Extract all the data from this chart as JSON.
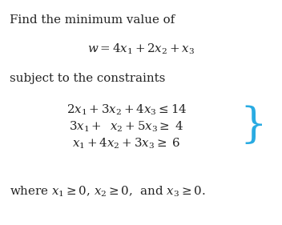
{
  "line1": "Find the minimum value of",
  "line2": "$w = 4x_1 + 2x_2 + x_3$",
  "line3": "subject to the constraints",
  "c1": "$2x_1 + 3x_2 + 4x_3 \\leq 14$",
  "c2": "$3x_1 + \\;\\; x_2 + 5x_3 \\geq \\; 4$",
  "c3": "$x_1 + 4x_2 + 3x_3 \\geq \\; 6$",
  "line_last": "where $x_1 \\geq 0$, $x_2 \\geq 0$,  and $x_3 \\geq 0$.",
  "bg_color": "#ffffff",
  "text_color": "#222222",
  "brace_color": "#29abe2",
  "fs": 10.8
}
